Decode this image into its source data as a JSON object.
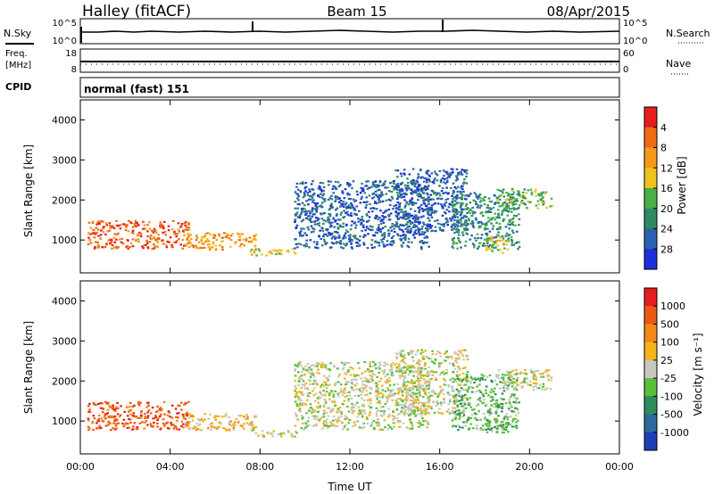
{
  "header": {
    "station": "Halley (fitACF)",
    "beam": "Beam 15",
    "date": "08/Apr/2015"
  },
  "nsky_panel": {
    "left_label": "N.Sky",
    "right_label": "N.Search",
    "ticks_left": [
      "10^5",
      "10^0"
    ],
    "ticks_right": [
      "10^5",
      "10^0"
    ]
  },
  "freq_panel": {
    "left_label_1": "Freq.",
    "left_label_2": "[MHz]",
    "right_label": "Nave",
    "ticks_left": [
      "18",
      "8"
    ],
    "ticks_right": [
      "60",
      "0"
    ]
  },
  "cpid_panel": {
    "label": "CPID",
    "text": "normal (fast) 151"
  },
  "chart_data": [
    {
      "type": "heatmap",
      "title": "",
      "xlabel": "Time UT",
      "ylabel": "Slant Range [km]",
      "x_ticks": [
        "00:00",
        "04:00",
        "08:00",
        "12:00",
        "16:00",
        "20:00",
        "00:00"
      ],
      "xlim": [
        0,
        24
      ],
      "ylim": [
        180,
        4500
      ],
      "y_ticks": [
        "1000",
        "2000",
        "3000",
        "4000"
      ],
      "colorbar": {
        "label": "Power [dB]",
        "ticks": [
          "4",
          "8",
          "12",
          "16",
          "20",
          "24",
          "28"
        ],
        "colors": [
          "#1f2fd8",
          "#2b5fb0",
          "#2e8a63",
          "#49b04a",
          "#f0c21c",
          "#f59a18",
          "#f06a14",
          "#e41e1e"
        ]
      },
      "regions": [
        {
          "t0": 0.3,
          "t1": 4.8,
          "r0": 800,
          "r1": 1500,
          "level": 6
        },
        {
          "t0": 4.6,
          "t1": 7.8,
          "r0": 780,
          "r1": 1200,
          "level": 5
        },
        {
          "t0": 7.5,
          "t1": 9.6,
          "r0": 620,
          "r1": 800,
          "level": 4
        },
        {
          "t0": 9.5,
          "t1": 15.5,
          "r0": 800,
          "r1": 2500,
          "level": 1
        },
        {
          "t0": 14.0,
          "t1": 17.2,
          "r0": 1200,
          "r1": 2800,
          "level": 1
        },
        {
          "t0": 16.5,
          "t1": 19.5,
          "r0": 800,
          "r1": 2200,
          "level": 2
        },
        {
          "t0": 18.0,
          "t1": 19.0,
          "r0": 700,
          "r1": 1100,
          "level": 4
        },
        {
          "t0": 18.5,
          "t1": 21.0,
          "r0": 1800,
          "r1": 2300,
          "level": 3
        }
      ]
    },
    {
      "type": "heatmap",
      "title": "",
      "xlabel": "Time UT",
      "ylabel": "Slant Range [km]",
      "x_ticks": [
        "00:00",
        "04:00",
        "08:00",
        "12:00",
        "16:00",
        "20:00",
        "00:00"
      ],
      "xlim": [
        0,
        24
      ],
      "ylim": [
        180,
        4500
      ],
      "y_ticks": [
        "1000",
        "2000",
        "3000",
        "4000"
      ],
      "colorbar": {
        "label": "Velocity [m s⁻¹]",
        "ticks": [
          "1000",
          "500",
          "100",
          "25",
          "-25",
          "-100",
          "-500",
          "-1000"
        ],
        "colors": [
          "#1c3fb5",
          "#2b6a9c",
          "#2e8d5c",
          "#5abf3c",
          "#c8c8c0",
          "#f4b418",
          "#f08a18",
          "#ea5a14",
          "#e41e1e"
        ]
      },
      "regions": [
        {
          "t0": 0.3,
          "t1": 4.8,
          "r0": 800,
          "r1": 1500,
          "level": 7
        },
        {
          "t0": 4.6,
          "t1": 7.8,
          "r0": 780,
          "r1": 1200,
          "level": 5
        },
        {
          "t0": 7.5,
          "t1": 9.6,
          "r0": 620,
          "r1": 800,
          "level": 4
        },
        {
          "t0": 9.5,
          "t1": 15.5,
          "r0": 800,
          "r1": 2500,
          "level": 4
        },
        {
          "t0": 14.0,
          "t1": 17.2,
          "r0": 1200,
          "r1": 2800,
          "level": 4
        },
        {
          "t0": 16.5,
          "t1": 19.5,
          "r0": 800,
          "r1": 2200,
          "level": 3
        },
        {
          "t0": 18.0,
          "t1": 19.0,
          "r0": 700,
          "r1": 1100,
          "level": 3
        },
        {
          "t0": 18.5,
          "t1": 21.0,
          "r0": 1800,
          "r1": 2300,
          "level": 4
        }
      ]
    }
  ]
}
